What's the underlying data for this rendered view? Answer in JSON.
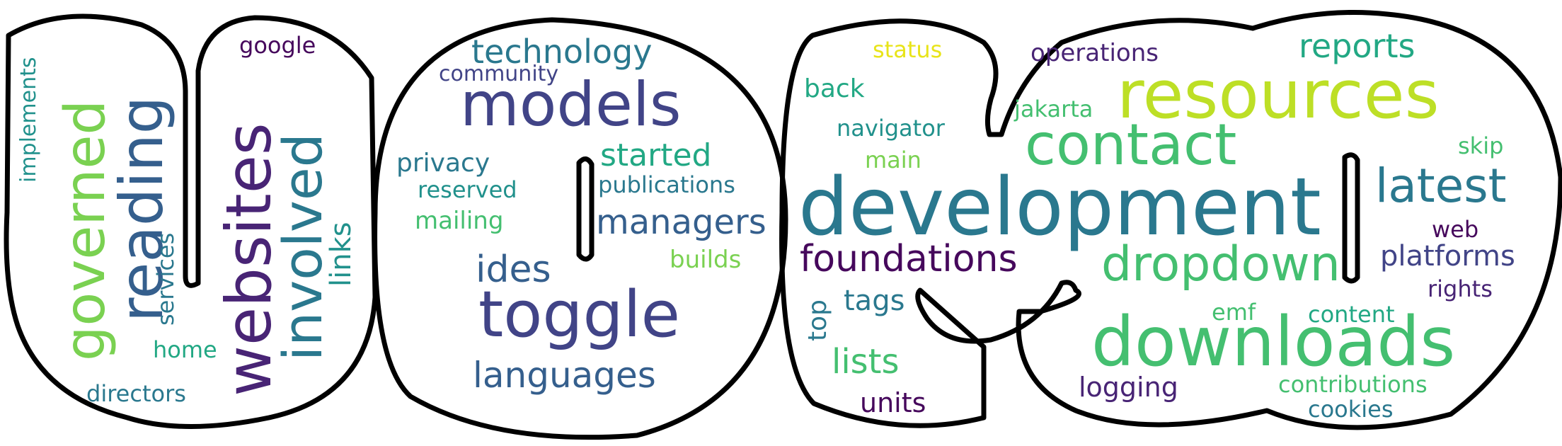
{
  "colors": {
    "dark_purple": "#46085c",
    "purple": "#482475",
    "indigo": "#414487",
    "blue": "#355f8d",
    "steel": "#2a788e",
    "teal": "#21918c",
    "green_teal": "#22a884",
    "green": "#44bf70",
    "light_green": "#7ad151",
    "lime": "#bddf26",
    "yellow": "#e8e419",
    "outline": "#000000"
  },
  "words": {
    "development": "development",
    "resources": "resources",
    "toggle": "toggle",
    "downloads": "downloads",
    "models": "models",
    "contact": "contact",
    "dropdown": "dropdown",
    "latest": "latest",
    "foundations": "foundations",
    "managers": "managers",
    "languages": "languages",
    "technology": "technology",
    "ides": "ides",
    "started": "started",
    "lists": "lists",
    "tags": "tags",
    "reports": "reports",
    "platforms": "platforms",
    "privacy": "privacy",
    "publications": "publications",
    "builds": "builds",
    "mailing": "mailing",
    "reserved": "reserved",
    "community": "community",
    "google": "google",
    "status": "status",
    "operations": "operations",
    "back": "back",
    "navigator": "navigator",
    "main": "main",
    "jakarta": "jakarta",
    "skip": "skip",
    "web": "web",
    "rights": "rights",
    "emf": "emf",
    "content": "content",
    "logging": "logging",
    "contributions": "contributions",
    "cookies": "cookies",
    "units": "units",
    "home": "home",
    "directors": "directors",
    "governed": "governed",
    "reading": "reading",
    "websites": "websites",
    "involved": "involved",
    "links": "links",
    "services": "services",
    "implements": "implements",
    "top": "top"
  }
}
